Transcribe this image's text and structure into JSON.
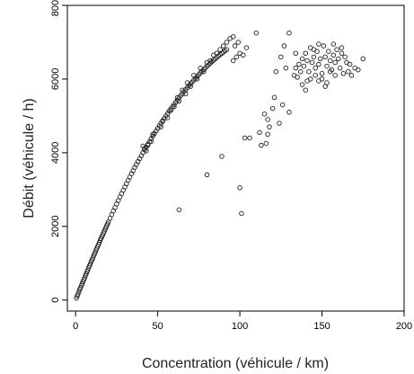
{
  "chart_data": {
    "type": "scatter",
    "title": "",
    "xlabel": "Concentration (véhicule / km)",
    "ylabel": "Débit (véhicule / h)",
    "xlim": [
      -5,
      200
    ],
    "ylim": [
      -300,
      8000
    ],
    "x_ticks": [
      0,
      50,
      100,
      150,
      200
    ],
    "y_ticks": [
      0,
      2000,
      4000,
      6000,
      8000
    ],
    "x_tick_labels": [
      "0",
      "50",
      "100",
      "150",
      "200"
    ],
    "y_tick_labels": [
      "0",
      "2000",
      "4000",
      "6000",
      "8000"
    ],
    "grid": false,
    "legend": "none",
    "marker": "open-circle",
    "colors": {
      "points": "#222222",
      "axis": "#000000",
      "curve": "#c0392b",
      "fitted": "#6fb3a6"
    },
    "points": [
      [
        0.5,
        50
      ],
      [
        1,
        110
      ],
      [
        1.5,
        160
      ],
      [
        2,
        220
      ],
      [
        2.5,
        280
      ],
      [
        3,
        330
      ],
      [
        3.5,
        390
      ],
      [
        4,
        440
      ],
      [
        4.5,
        500
      ],
      [
        5,
        550
      ],
      [
        5.5,
        600
      ],
      [
        6,
        660
      ],
      [
        6.5,
        710
      ],
      [
        7,
        770
      ],
      [
        7.5,
        820
      ],
      [
        8,
        880
      ],
      [
        8.5,
        930
      ],
      [
        9,
        980
      ],
      [
        9.5,
        1040
      ],
      [
        10,
        1090
      ],
      [
        10.5,
        1140
      ],
      [
        11,
        1200
      ],
      [
        11.5,
        1250
      ],
      [
        12,
        1300
      ],
      [
        12.5,
        1360
      ],
      [
        13,
        1410
      ],
      [
        13.5,
        1460
      ],
      [
        14,
        1510
      ],
      [
        14.5,
        1560
      ],
      [
        15,
        1620
      ],
      [
        15.5,
        1670
      ],
      [
        16,
        1720
      ],
      [
        16.5,
        1770
      ],
      [
        17,
        1820
      ],
      [
        17.5,
        1870
      ],
      [
        18,
        1920
      ],
      [
        18.5,
        1970
      ],
      [
        19,
        2020
      ],
      [
        19.5,
        2070
      ],
      [
        20,
        2120
      ],
      [
        21,
        2220
      ],
      [
        22,
        2320
      ],
      [
        23,
        2420
      ],
      [
        24,
        2510
      ],
      [
        25,
        2610
      ],
      [
        26,
        2700
      ],
      [
        27,
        2800
      ],
      [
        28,
        2890
      ],
      [
        29,
        2980
      ],
      [
        30,
        3070
      ],
      [
        31,
        3160
      ],
      [
        32,
        3250
      ],
      [
        33,
        3340
      ],
      [
        34,
        3430
      ],
      [
        35,
        3510
      ],
      [
        36,
        3600
      ],
      [
        37,
        3680
      ],
      [
        38,
        3760
      ],
      [
        39,
        3840
      ],
      [
        40,
        3920
      ],
      [
        41,
        4000
      ],
      [
        42,
        4080
      ],
      [
        43,
        4150
      ],
      [
        44,
        4230
      ],
      [
        45,
        4300
      ],
      [
        46,
        4380
      ],
      [
        47,
        4450
      ],
      [
        48,
        4520
      ],
      [
        49,
        4590
      ],
      [
        50,
        4660
      ],
      [
        51,
        4730
      ],
      [
        52,
        4800
      ],
      [
        53,
        4870
      ],
      [
        54,
        4930
      ],
      [
        55,
        5000
      ],
      [
        56,
        5060
      ],
      [
        57,
        5130
      ],
      [
        58,
        5190
      ],
      [
        59,
        5250
      ],
      [
        60,
        5310
      ],
      [
        61,
        5370
      ],
      [
        62,
        5430
      ],
      [
        63,
        5490
      ],
      [
        64,
        5550
      ],
      [
        65,
        5600
      ],
      [
        66,
        5660
      ],
      [
        67,
        5710
      ],
      [
        68,
        5770
      ],
      [
        69,
        5820
      ],
      [
        70,
        5870
      ],
      [
        71,
        5920
      ],
      [
        72,
        5970
      ],
      [
        73,
        6020
      ],
      [
        74,
        6070
      ],
      [
        75,
        6120
      ],
      [
        76,
        6170
      ],
      [
        77,
        6210
      ],
      [
        78,
        6260
      ],
      [
        79,
        6300
      ],
      [
        80,
        6350
      ],
      [
        81,
        6390
      ],
      [
        82,
        6430
      ],
      [
        83,
        6470
      ],
      [
        84,
        6510
      ],
      [
        85,
        6550
      ],
      [
        86,
        6590
      ],
      [
        87,
        6630
      ],
      [
        88,
        6660
      ],
      [
        89,
        6700
      ],
      [
        90,
        6730
      ],
      [
        91,
        6770
      ],
      [
        92,
        6800
      ],
      [
        42,
        4120
      ],
      [
        43,
        4050
      ],
      [
        44,
        4200
      ],
      [
        41,
        4180
      ],
      [
        46,
        4300
      ],
      [
        47,
        4500
      ],
      [
        52,
        4700
      ],
      [
        53,
        4850
      ],
      [
        56,
        4950
      ],
      [
        58,
        5150
      ],
      [
        60,
        5250
      ],
      [
        62,
        5500
      ],
      [
        63,
        5400
      ],
      [
        65,
        5700
      ],
      [
        67,
        5600
      ],
      [
        68,
        5900
      ],
      [
        70,
        5800
      ],
      [
        72,
        6100
      ],
      [
        74,
        6000
      ],
      [
        76,
        6300
      ],
      [
        78,
        6200
      ],
      [
        80,
        6450
      ],
      [
        82,
        6500
      ],
      [
        84,
        6650
      ],
      [
        86,
        6700
      ],
      [
        88,
        6800
      ],
      [
        90,
        6900
      ],
      [
        92,
        7000
      ],
      [
        94,
        7100
      ],
      [
        96,
        7150
      ],
      [
        97,
        6900
      ],
      [
        99,
        7000
      ],
      [
        98,
        6600
      ],
      [
        100,
        6700
      ],
      [
        96,
        6500
      ],
      [
        104,
        6850
      ],
      [
        102,
        6650
      ],
      [
        63,
        2450
      ],
      [
        80,
        3400
      ],
      [
        89,
        3900
      ],
      [
        100,
        3050
      ],
      [
        101,
        2350
      ],
      [
        103,
        4400
      ],
      [
        106,
        4400
      ],
      [
        112,
        4550
      ],
      [
        113,
        4200
      ],
      [
        116,
        4250
      ],
      [
        117,
        4500
      ],
      [
        117,
        4900
      ],
      [
        118,
        4700
      ],
      [
        120,
        5200
      ],
      [
        121,
        5500
      ],
      [
        124,
        4800
      ],
      [
        126,
        5300
      ],
      [
        130,
        5100
      ],
      [
        115,
        5050
      ],
      [
        122,
        6200
      ],
      [
        125,
        6600
      ],
      [
        128,
        6300
      ],
      [
        127,
        6900
      ],
      [
        110,
        7250
      ],
      [
        130,
        7250
      ],
      [
        134,
        6300
      ],
      [
        140,
        5700
      ],
      [
        148,
        5950
      ],
      [
        155,
        6200
      ],
      [
        175,
        6550
      ],
      [
        133,
        6100
      ],
      [
        135,
        6050
      ],
      [
        136,
        6400
      ],
      [
        137,
        6200
      ],
      [
        138,
        6550
      ],
      [
        139,
        6350
      ],
      [
        140,
        6700
      ],
      [
        141,
        6500
      ],
      [
        142,
        6200
      ],
      [
        143,
        6850
      ],
      [
        144,
        6450
      ],
      [
        145,
        6600
      ],
      [
        146,
        6300
      ],
      [
        147,
        6750
      ],
      [
        148,
        6400
      ],
      [
        149,
        6550
      ],
      [
        150,
        6150
      ],
      [
        151,
        6900
      ],
      [
        152,
        6600
      ],
      [
        153,
        6350
      ],
      [
        154,
        6750
      ],
      [
        155,
        6500
      ],
      [
        156,
        6250
      ],
      [
        157,
        6650
      ],
      [
        158,
        6450
      ],
      [
        159,
        6800
      ],
      [
        160,
        6550
      ],
      [
        161,
        6300
      ],
      [
        162,
        6700
      ],
      [
        163,
        6150
      ],
      [
        164,
        6600
      ],
      [
        165,
        6450
      ],
      [
        166,
        6200
      ],
      [
        167,
        6400
      ],
      [
        168,
        6100
      ],
      [
        170,
        6300
      ],
      [
        172,
        6250
      ],
      [
        143,
        6000
      ],
      [
        146,
        6100
      ],
      [
        150,
        6000
      ],
      [
        153,
        5900
      ],
      [
        158,
        6100
      ],
      [
        138,
        5850
      ],
      [
        141,
        5950
      ],
      [
        152,
        5800
      ],
      [
        148,
        6950
      ],
      [
        157,
        6950
      ],
      [
        162,
        6850
      ],
      [
        145,
        6800
      ],
      [
        134,
        6700
      ]
    ]
  }
}
